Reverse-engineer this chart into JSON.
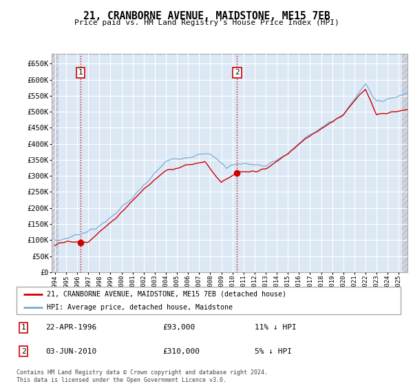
{
  "title": "21, CRANBORNE AVENUE, MAIDSTONE, ME15 7EB",
  "subtitle": "Price paid vs. HM Land Registry's House Price Index (HPI)",
  "ylabel_ticks": [
    "£0",
    "£50K",
    "£100K",
    "£150K",
    "£200K",
    "£250K",
    "£300K",
    "£350K",
    "£400K",
    "£450K",
    "£500K",
    "£550K",
    "£600K",
    "£650K"
  ],
  "ylim": [
    0,
    680000
  ],
  "xlim_start": 1993.7,
  "xlim_end": 2025.8,
  "sale1_date": 1996.31,
  "sale1_price": 93000,
  "sale2_date": 2010.42,
  "sale2_price": 310000,
  "legend_line1": "21, CRANBORNE AVENUE, MAIDSTONE, ME15 7EB (detached house)",
  "legend_line2": "HPI: Average price, detached house, Maidstone",
  "note1_label": "1",
  "note1_date": "22-APR-1996",
  "note1_price": "£93,000",
  "note1_hpi": "11% ↓ HPI",
  "note2_label": "2",
  "note2_date": "03-JUN-2010",
  "note2_price": "£310,000",
  "note2_hpi": "5% ↓ HPI",
  "footer": "Contains HM Land Registry data © Crown copyright and database right 2024.\nThis data is licensed under the Open Government Licence v3.0.",
  "hpi_color": "#7aabdc",
  "price_color": "#cc0000",
  "plot_bg_color": "#dde8f5",
  "hatch_color": "#c8ccd8",
  "grid_color": "#ffffff",
  "sale_marker_color": "#cc0000",
  "vline_color": "#cc0000",
  "border_color": "#aaaaaa"
}
